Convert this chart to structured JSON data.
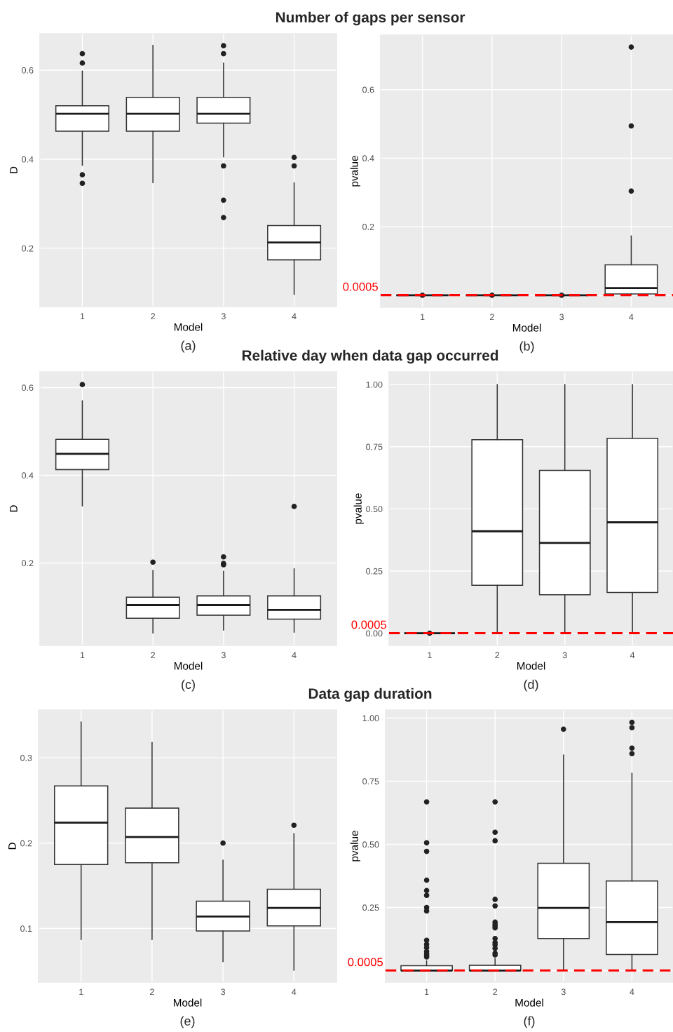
{
  "chart_data": [
    {
      "type": "box",
      "title": "Number of gaps per sensor",
      "xlabel": "Model",
      "ylabel": "D",
      "categories": [
        "1",
        "2",
        "3",
        "4"
      ],
      "ylim": [
        0.069,
        0.682
      ],
      "yticks": [
        0.2,
        0.4,
        0.6
      ],
      "grid": true,
      "annotations": [
        "(a)"
      ],
      "boxes": [
        {
          "low": 0.386,
          "q1": 0.463,
          "median": 0.502,
          "q3": 0.52,
          "high": 0.598,
          "outliers": [
            0.637,
            0.616,
            0.365,
            0.346
          ]
        },
        {
          "low": 0.347,
          "q1": 0.463,
          "median": 0.502,
          "q3": 0.539,
          "high": 0.656
        },
        {
          "low": 0.405,
          "q1": 0.481,
          "median": 0.502,
          "q3": 0.539,
          "high": 0.616,
          "outliers": [
            0.655,
            0.637,
            0.385,
            0.308,
            0.269
          ]
        },
        {
          "low": 0.096,
          "q1": 0.174,
          "median": 0.213,
          "q3": 0.251,
          "high": 0.347,
          "outliers": [
            0.404,
            0.385
          ]
        }
      ]
    },
    {
      "type": "box",
      "xlabel": "Model",
      "ylabel": "pvalue",
      "categories": [
        "1",
        "2",
        "3",
        "4"
      ],
      "ylim": [
        -0.035,
        0.759
      ],
      "yticks": [
        {
          "value": 0,
          "label": null
        },
        0.2,
        0.4,
        0.6
      ],
      "grid": true,
      "annotations": [
        "(b)"
      ],
      "ref_lines": [
        {
          "axis": "y",
          "value": 0.0005,
          "label": "0.0005",
          "color": "#ff0000",
          "line_style": "dashed"
        }
      ],
      "boxes": [
        {
          "low": 0,
          "q1": 0,
          "median": 0,
          "q3": 0,
          "high": 0,
          "outliers": [
            0
          ]
        },
        {
          "low": 0,
          "q1": 0,
          "median": 0,
          "q3": 0,
          "high": 0,
          "outliers": [
            0
          ]
        },
        {
          "low": 0,
          "q1": 0,
          "median": 0,
          "q3": 0,
          "high": 0,
          "outliers": [
            0
          ]
        },
        {
          "low": 0.002,
          "q1": 0.004,
          "median": 0.021,
          "q3": 0.089,
          "high": 0.173,
          "outliers": [
            0.724,
            0.494,
            0.304
          ]
        }
      ]
    },
    {
      "type": "box",
      "title": "Relative day when data gap occurred",
      "xlabel": "Model",
      "ylabel": "D",
      "categories": [
        "1",
        "2",
        "3",
        "4"
      ],
      "ylim": [
        0.012,
        0.636
      ],
      "yticks": [
        0.2,
        0.4,
        0.6
      ],
      "grid": true,
      "annotations": [
        "(c)"
      ],
      "boxes": [
        {
          "low": 0.33,
          "q1": 0.413,
          "median": 0.449,
          "q3": 0.482,
          "high": 0.57,
          "outliers": [
            0.607
          ]
        },
        {
          "low": 0.04,
          "q1": 0.074,
          "median": 0.104,
          "q3": 0.122,
          "high": 0.183,
          "outliers": [
            0.202
          ]
        },
        {
          "low": 0.047,
          "q1": 0.081,
          "median": 0.104,
          "q3": 0.125,
          "high": 0.181,
          "outliers": [
            0.214,
            0.199,
            0.196
          ]
        },
        {
          "low": 0.042,
          "q1": 0.072,
          "median": 0.093,
          "q3": 0.125,
          "high": 0.187,
          "outliers": [
            0.329
          ]
        }
      ]
    },
    {
      "type": "box",
      "xlabel": "Model",
      "ylabel": "pvalue",
      "categories": [
        "1",
        "2",
        "3",
        "4"
      ],
      "ylim": [
        -0.049,
        1.051
      ],
      "yticks": [
        {
          "value": 0,
          "label": "0.00"
        },
        {
          "value": 0.25,
          "label": "0.25"
        },
        {
          "value": 0.5,
          "label": "0.50"
        },
        {
          "value": 0.75,
          "label": "0.75"
        },
        {
          "value": 1,
          "label": "1.00"
        }
      ],
      "grid": true,
      "annotations": [
        "(d)"
      ],
      "ref_lines": [
        {
          "axis": "y",
          "value": 0.0005,
          "label": "0.0005",
          "color": "#ff0000",
          "line_style": "dashed"
        }
      ],
      "boxes": [
        {
          "low": 0,
          "q1": 0,
          "median": 0,
          "q3": 0,
          "high": 0,
          "outliers": [
            0
          ]
        },
        {
          "low": 0.005,
          "q1": 0.193,
          "median": 0.41,
          "q3": 0.778,
          "high": 1.0
        },
        {
          "low": 0.005,
          "q1": 0.155,
          "median": 0.363,
          "q3": 0.655,
          "high": 1.0
        },
        {
          "low": 0.005,
          "q1": 0.164,
          "median": 0.446,
          "q3": 0.784,
          "high": 1.0
        }
      ]
    },
    {
      "type": "box",
      "title": "Data gap duration",
      "xlabel": "Model",
      "ylabel": "D",
      "categories": [
        "1",
        "2",
        "3",
        "4"
      ],
      "ylim": [
        0.037,
        0.356
      ],
      "yticks": [
        0.1,
        0.2,
        0.3
      ],
      "grid": true,
      "annotations": [
        "(e)"
      ],
      "boxes": [
        {
          "low": 0.087,
          "q1": 0.175,
          "median": 0.224,
          "q3": 0.267,
          "high": 0.342
        },
        {
          "low": 0.087,
          "q1": 0.177,
          "median": 0.207,
          "q3": 0.241,
          "high": 0.318
        },
        {
          "low": 0.061,
          "q1": 0.097,
          "median": 0.114,
          "q3": 0.132,
          "high": 0.18,
          "outliers": [
            0.2
          ]
        },
        {
          "low": 0.051,
          "q1": 0.103,
          "median": 0.124,
          "q3": 0.146,
          "high": 0.211,
          "outliers": [
            0.221
          ]
        }
      ]
    },
    {
      "type": "box",
      "xlabel": "Model",
      "ylabel": "pvalue",
      "categories": [
        "1",
        "2",
        "3",
        "4"
      ],
      "ylim": [
        -0.046,
        1.032
      ],
      "yticks": [
        {
          "value": 0,
          "label": null
        },
        {
          "value": 0.25,
          "label": "0.25"
        },
        {
          "value": 0.5,
          "label": "0.50"
        },
        {
          "value": 0.75,
          "label": "0.75"
        },
        {
          "value": 1,
          "label": "1.00"
        }
      ],
      "grid": true,
      "annotations": [
        "(f)"
      ],
      "ref_lines": [
        {
          "axis": "y",
          "value": 0.0005,
          "label": "0.0005",
          "color": "#ff0000",
          "line_style": "dashed"
        }
      ],
      "boxes": [
        {
          "low": 0,
          "q1": 0,
          "median": 0,
          "q3": 0.019,
          "high": 0.039,
          "outliers": [
            0.668,
            0.506,
            0.472,
            0.358,
            0.317,
            0.298,
            0.25,
            0.236,
            0.12,
            0.104,
            0.091,
            0.076,
            0.067,
            0.06,
            0.054
          ]
        },
        {
          "low": 0,
          "q1": 0,
          "median": 0,
          "q3": 0.021,
          "high": 0.048,
          "outliers": [
            0.668,
            0.548,
            0.514,
            0.282,
            0.256,
            0.192,
            0.183,
            0.176,
            0.169,
            0.127,
            0.111,
            0.102,
            0.088,
            0.069,
            0.062
          ]
        },
        {
          "low": 0.005,
          "q1": 0.127,
          "median": 0.248,
          "q3": 0.425,
          "high": 0.854,
          "outliers": [
            0.956
          ]
        },
        {
          "low": 0.003,
          "q1": 0.064,
          "median": 0.192,
          "q3": 0.355,
          "high": 0.782,
          "outliers": [
            0.983,
            0.962,
            0.881,
            0.859
          ]
        }
      ]
    }
  ]
}
